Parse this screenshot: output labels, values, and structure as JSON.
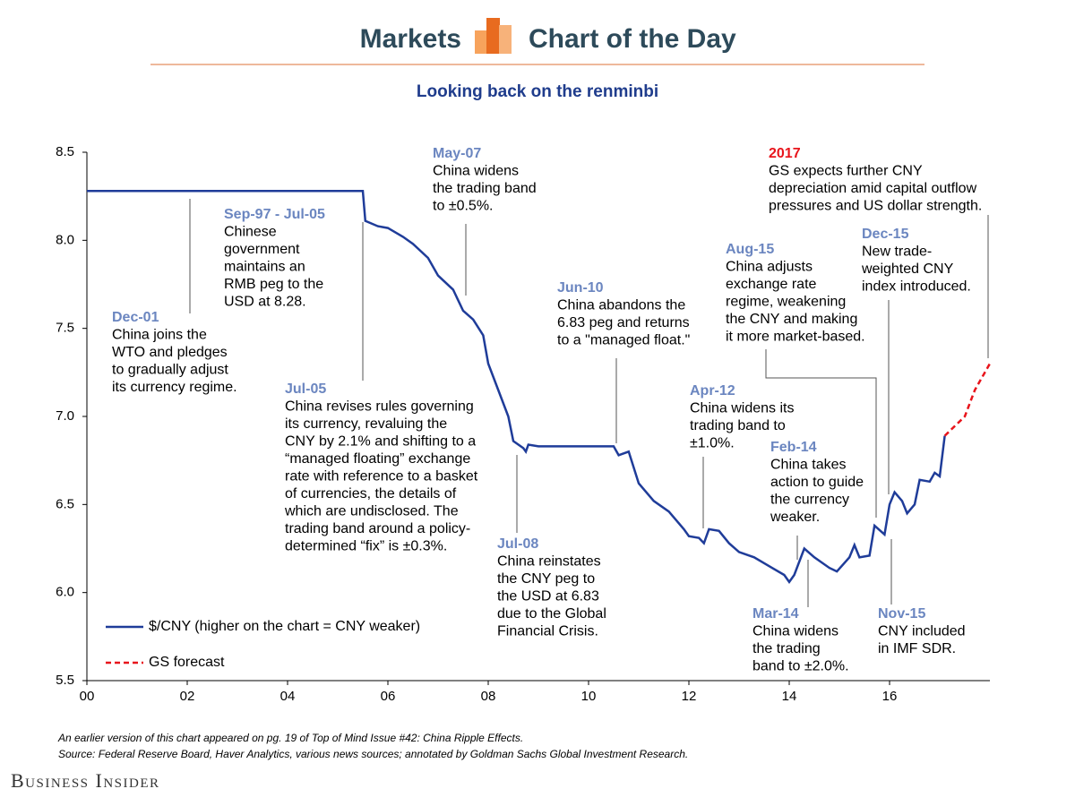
{
  "header": {
    "left": "Markets",
    "right": "Chart of the Day"
  },
  "chart_data": {
    "type": "line",
    "title": "Looking back on the renminbi",
    "xlim": [
      2000,
      2018
    ],
    "xticks": [
      {
        "value": 2000,
        "label": "00"
      },
      {
        "value": 2002,
        "label": "02"
      },
      {
        "value": 2004,
        "label": "04"
      },
      {
        "value": 2006,
        "label": "06"
      },
      {
        "value": 2008,
        "label": "08"
      },
      {
        "value": 2010,
        "label": "10"
      },
      {
        "value": 2012,
        "label": "12"
      },
      {
        "value": 2014,
        "label": "14"
      },
      {
        "value": 2016,
        "label": "16"
      }
    ],
    "ylim": [
      5.5,
      8.5
    ],
    "yticks": [
      {
        "value": 5.5,
        "label": "5.5"
      },
      {
        "value": 6,
        "label": "6.0"
      },
      {
        "value": 6.5,
        "label": "6.5"
      },
      {
        "value": 7,
        "label": "7.0"
      },
      {
        "value": 7.5,
        "label": "7.5"
      },
      {
        "value": 8,
        "label": "8.0"
      },
      {
        "value": 8.5,
        "label": "8.5"
      }
    ],
    "series": [
      {
        "name": "$/CNY (higher on the chart = CNY weaker)",
        "color": "#1f3c99",
        "dashed": false,
        "x": [
          2000,
          2001,
          2002,
          2003,
          2004,
          2005,
          2005.5,
          2005.55,
          2005.8,
          2006.0,
          2006.3,
          2006.5,
          2006.8,
          2007.0,
          2007.3,
          2007.5,
          2007.7,
          2007.9,
          2008.0,
          2008.2,
          2008.4,
          2008.5,
          2008.7,
          2008.75,
          2008.8,
          2009.0,
          2009.5,
          2010.0,
          2010.5,
          2010.6,
          2010.8,
          2011.0,
          2011.3,
          2011.6,
          2011.9,
          2012.0,
          2012.2,
          2012.3,
          2012.4,
          2012.6,
          2012.8,
          2013.0,
          2013.3,
          2013.6,
          2013.9,
          2014.0,
          2014.1,
          2014.3,
          2014.5,
          2014.8,
          2014.95,
          2015.2,
          2015.3,
          2015.4,
          2015.6,
          2015.7,
          2015.9,
          2016.0,
          2016.1,
          2016.25,
          2016.35,
          2016.5,
          2016.6,
          2016.8,
          2016.9,
          2017.0,
          2017.1
        ],
        "values": [
          8.28,
          8.28,
          8.28,
          8.28,
          8.28,
          8.28,
          8.28,
          8.11,
          8.08,
          8.07,
          8.02,
          7.98,
          7.9,
          7.8,
          7.72,
          7.6,
          7.55,
          7.46,
          7.3,
          7.15,
          7.0,
          6.86,
          6.82,
          6.8,
          6.84,
          6.83,
          6.83,
          6.83,
          6.83,
          6.78,
          6.8,
          6.62,
          6.52,
          6.46,
          6.36,
          6.32,
          6.31,
          6.28,
          6.36,
          6.35,
          6.28,
          6.23,
          6.2,
          6.15,
          6.1,
          6.06,
          6.1,
          6.25,
          6.2,
          6.14,
          6.12,
          6.2,
          6.27,
          6.2,
          6.21,
          6.38,
          6.33,
          6.5,
          6.57,
          6.52,
          6.45,
          6.5,
          6.64,
          6.63,
          6.68,
          6.66,
          6.89
        ]
      },
      {
        "name": "GS forecast",
        "color": "#e8141b",
        "dashed": true,
        "x": [
          2017.1,
          2017.5,
          2017.7,
          2018.0
        ],
        "values": [
          6.89,
          7.0,
          7.15,
          7.3
        ]
      }
    ],
    "annotations": [
      {
        "label": "Dec-01",
        "color": "#6b86c0",
        "text": [
          "China joins the",
          "WTO and pledges",
          "to gradually adjust",
          "its currency regime."
        ]
      },
      {
        "label": "Sep-97 - Jul-05",
        "color": "#6b86c0",
        "text": [
          "Chinese",
          "government",
          "maintains an",
          "RMB peg to the",
          "USD at 8.28."
        ]
      },
      {
        "label": "May-07",
        "color": "#6b86c0",
        "text": [
          "China widens",
          "the trading band",
          "to ±0.5%."
        ]
      },
      {
        "label": "Jul-05",
        "color": "#6b86c0",
        "text": [
          "China revises rules governing",
          "its currency, revaluing the",
          "CNY by 2.1% and shifting to a",
          "“managed floating” exchange",
          "rate with reference to a basket",
          "of currencies, the details of",
          "which are undisclosed. The",
          "trading band around a policy-",
          "determined “fix” is ±0.3%."
        ]
      },
      {
        "label": "Jun-10",
        "color": "#6b86c0",
        "text": [
          "China abandons the",
          "6.83 peg and returns",
          "to a \"managed float.\""
        ]
      },
      {
        "label": "Jul-08",
        "color": "#6b86c0",
        "text": [
          "China reinstates",
          "the CNY peg to",
          "the USD at 6.83",
          "due to the Global",
          "Financial Crisis."
        ]
      },
      {
        "label": "Apr-12",
        "color": "#6b86c0",
        "text": [
          "China widens its",
          "trading band to",
          "±1.0%."
        ]
      },
      {
        "label": "Aug-15",
        "color": "#6b86c0",
        "text": [
          "China adjusts",
          "exchange rate",
          "regime, weakening",
          "the CNY and making",
          "it more market-based."
        ]
      },
      {
        "label": "Feb-14",
        "color": "#6b86c0",
        "text": [
          "China takes",
          "action to guide",
          "the currency",
          "weaker."
        ]
      },
      {
        "label": "Mar-14",
        "color": "#6b86c0",
        "text": [
          "China widens",
          "the trading",
          "band to ±2.0%."
        ]
      },
      {
        "label": "2017",
        "color": "#e8141b",
        "text": [
          "GS expects further CNY",
          "depreciation amid capital outflow",
          "pressures and US dollar strength."
        ]
      },
      {
        "label": "Dec-15",
        "color": "#6b86c0",
        "text": [
          "New trade-",
          "weighted CNY",
          "index introduced."
        ]
      },
      {
        "label": "Nov-15",
        "color": "#6b86c0",
        "text": [
          "CNY included",
          "in IMF SDR."
        ]
      }
    ]
  },
  "footer": {
    "notes": [
      "An earlier version of this chart appeared on pg. 19 of Top of Mind Issue #42: China Ripple Effects.",
      "Source: Federal Reserve Board, Haver Analytics, various news sources; annotated by Goldman Sachs Global Investment Research."
    ],
    "brand": "Business Insider"
  }
}
